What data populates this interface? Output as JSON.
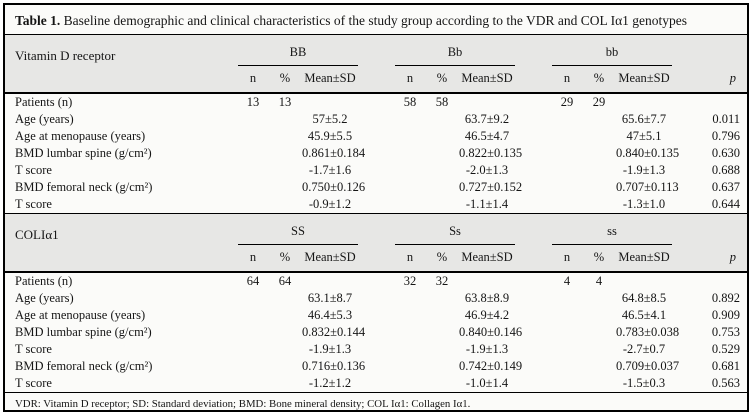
{
  "title": {
    "label": "Table 1.",
    "caption": " Baseline demographic and clinical characteristics of the study group according to the VDR and COL Iα1 genotypes"
  },
  "columns": {
    "n": "n",
    "pct": "%",
    "mean": "Mean±SD",
    "p": "p"
  },
  "sections": [
    {
      "name": "Vitamin D receptor",
      "groups": [
        "BB",
        "Bb",
        "bb"
      ],
      "rows": [
        {
          "label": "Patients (n)",
          "values": [
            "13",
            "13",
            "",
            "58",
            "58",
            "",
            "29",
            "29",
            "",
            ""
          ]
        },
        {
          "label": "Age (years)",
          "values": [
            "",
            "",
            "57±5.2",
            "",
            "",
            "63.7±9.2",
            "",
            "",
            "65.6±7.7",
            "0.011"
          ]
        },
        {
          "label": "Age at menopause (years)",
          "values": [
            "",
            "",
            "45.9±5.5",
            "",
            "",
            "46.5±4.7",
            "",
            "",
            "47±5.1",
            "0.796"
          ]
        },
        {
          "label": "BMD lumbar spine (g/cm²)",
          "values": [
            "",
            "",
            "0.861±0.184",
            "",
            "",
            "0.822±0.135",
            "",
            "",
            "0.840±0.135",
            "0.630"
          ]
        },
        {
          "label": "T score",
          "values": [
            "",
            "",
            "-1.7±1.6",
            "",
            "",
            "-2.0±1.3",
            "",
            "",
            "-1.9±1.3",
            "0.688"
          ]
        },
        {
          "label": "BMD femoral neck (g/cm²)",
          "values": [
            "",
            "",
            "0.750±0.126",
            "",
            "",
            "0.727±0.152",
            "",
            "",
            "0.707±0.113",
            "0.637"
          ]
        },
        {
          "label": "T score",
          "values": [
            "",
            "",
            "-0.9±1.2",
            "",
            "",
            "-1.1±1.4",
            "",
            "",
            "-1.3±1.0",
            "0.644"
          ]
        }
      ]
    },
    {
      "name": "COLIα1",
      "groups": [
        "SS",
        "Ss",
        "ss"
      ],
      "rows": [
        {
          "label": "Patients (n)",
          "values": [
            "64",
            "64",
            "",
            "32",
            "32",
            "",
            "4",
            "4",
            "",
            ""
          ]
        },
        {
          "label": "Age (years)",
          "values": [
            "",
            "",
            "63.1±8.7",
            "",
            "",
            "63.8±8.9",
            "",
            "",
            "64.8±8.5",
            "0.892"
          ]
        },
        {
          "label": "Age at menopause (years)",
          "values": [
            "",
            "",
            "46.4±5.3",
            "",
            "",
            "46.9±4.2",
            "",
            "",
            "46.5±4.1",
            "0.909"
          ]
        },
        {
          "label": "BMD lumbar spine (g/cm²)",
          "values": [
            "",
            "",
            "0.832±0.144",
            "",
            "",
            "0.840±0.146",
            "",
            "",
            "0.783±0.038",
            "0.753"
          ]
        },
        {
          "label": "T score",
          "values": [
            "",
            "",
            "-1.9±1.3",
            "",
            "",
            "-1.9±1.3",
            "",
            "",
            "-2.7±0.7",
            "0.529"
          ]
        },
        {
          "label": "BMD femoral neck (g/cm²)",
          "values": [
            "",
            "",
            "0.716±0.136",
            "",
            "",
            "0.742±0.149",
            "",
            "",
            "0.709±0.037",
            "0.681"
          ]
        },
        {
          "label": "T score",
          "values": [
            "",
            "",
            "-1.2±1.2",
            "",
            "",
            "-1.0±1.4",
            "",
            "",
            "-1.5±0.3",
            "0.563"
          ]
        }
      ]
    }
  ],
  "footnote": "VDR: Vitamin D receptor; SD: Standard deviation; BMD: Bone mineral density; COL Iα1: Collagen Iα1."
}
